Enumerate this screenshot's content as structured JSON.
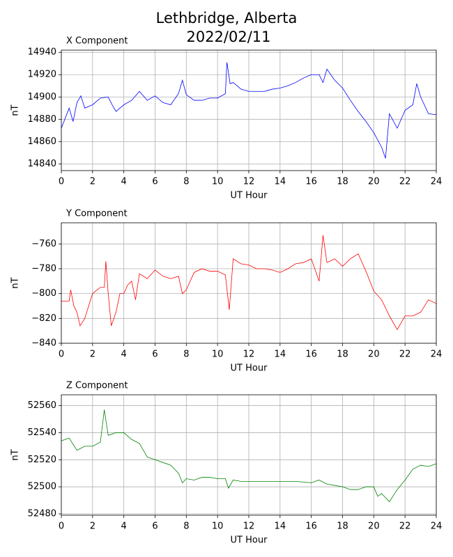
{
  "title": [
    "Lethbridge, Alberta",
    "2022/02/11"
  ],
  "chart_data": [
    {
      "type": "line",
      "title": "X Component",
      "xlabel": "UT Hour",
      "ylabel": "nT",
      "color": "#0000ff",
      "grid": true,
      "xlim": [
        0,
        24
      ],
      "xticks": [
        0,
        2,
        4,
        6,
        8,
        10,
        12,
        14,
        16,
        18,
        20,
        22,
        24
      ],
      "ylim": [
        14834,
        14942
      ],
      "yticks": [
        14840,
        14860,
        14880,
        14900,
        14920,
        14940
      ],
      "x": [
        0,
        0.5,
        0.75,
        1,
        1.25,
        1.5,
        2,
        2.5,
        3,
        3.25,
        3.5,
        4,
        4.5,
        5,
        5.5,
        6,
        6.5,
        7,
        7.5,
        7.75,
        8,
        8.5,
        9,
        9.5,
        10,
        10.5,
        10.6,
        10.8,
        11,
        11.5,
        12,
        12.5,
        13,
        13.5,
        14,
        14.5,
        15,
        15.5,
        16,
        16.5,
        16.75,
        17,
        17.5,
        18,
        18.5,
        19,
        19.5,
        20,
        20.5,
        20.75,
        21,
        21.5,
        22,
        22.5,
        22.75,
        23,
        23.5,
        24
      ],
      "values": [
        14872,
        14890,
        14878,
        14895,
        14901,
        14890,
        14893,
        14899,
        14900,
        14893,
        14887,
        14893,
        14897,
        14905,
        14897,
        14901,
        14895,
        14893,
        14903,
        14915,
        14902,
        14897,
        14897,
        14899,
        14899,
        14903,
        14931,
        14912,
        14913,
        14907,
        14905,
        14905,
        14905,
        14907,
        14908,
        14910,
        14913,
        14917,
        14920,
        14920,
        14913,
        14925,
        14915,
        14908,
        14897,
        14887,
        14878,
        14868,
        14855,
        14845,
        14885,
        14872,
        14888,
        14893,
        14912,
        14900,
        14885,
        14884
      ]
    },
    {
      "type": "line",
      "title": "Y Component",
      "xlabel": "UT Hour",
      "ylabel": "nT",
      "color": "#ff0000",
      "grid": true,
      "xlim": [
        0,
        24
      ],
      "xticks": [
        0,
        2,
        4,
        6,
        8,
        10,
        12,
        14,
        16,
        18,
        20,
        22,
        24
      ],
      "ylim": [
        -840,
        -743
      ],
      "yticks": [
        {
          "value": -840,
          "label": "−840"
        },
        {
          "value": -820,
          "label": "−820"
        },
        {
          "value": -800,
          "label": "−800"
        },
        {
          "value": -780,
          "label": "−780"
        },
        {
          "value": -760,
          "label": "−760"
        }
      ],
      "x": [
        0,
        0.5,
        0.6,
        0.8,
        1,
        1.2,
        1.5,
        2,
        2.5,
        2.75,
        2.85,
        3,
        3.2,
        3.5,
        3.75,
        4,
        4.25,
        4.5,
        4.75,
        5,
        5.5,
        6,
        6.5,
        7,
        7.5,
        7.75,
        8,
        8.5,
        9,
        9.5,
        10,
        10.5,
        10.75,
        11,
        11.5,
        12,
        12.5,
        13,
        13.5,
        14,
        14.5,
        15,
        15.5,
        16,
        16.5,
        16.75,
        17,
        17.5,
        18,
        18.5,
        19,
        19.5,
        20,
        20.5,
        21,
        21.5,
        22,
        22.5,
        23,
        23.5,
        24
      ],
      "values": [
        -806,
        -806,
        -797,
        -810,
        -815,
        -826,
        -820,
        -800,
        -795,
        -795,
        -774,
        -800,
        -826,
        -815,
        -800,
        -800,
        -793,
        -790,
        -805,
        -784,
        -788,
        -781,
        -786,
        -788,
        -786,
        -800,
        -797,
        -783,
        -780,
        -782,
        -782,
        -785,
        -813,
        -772,
        -776,
        -777,
        -780,
        -780,
        -781,
        -783,
        -780,
        -776,
        -775,
        -772,
        -790,
        -753,
        -775,
        -772,
        -778,
        -772,
        -768,
        -782,
        -798,
        -805,
        -818,
        -829,
        -818,
        -818,
        -815,
        -805,
        -808
      ]
    },
    {
      "type": "line",
      "title": "Z Component",
      "xlabel": "UT Hour",
      "ylabel": "nT",
      "color": "#008000",
      "grid": true,
      "xlim": [
        0,
        24
      ],
      "xticks": [
        0,
        2,
        4,
        6,
        8,
        10,
        12,
        14,
        16,
        18,
        20,
        22,
        24
      ],
      "ylim": [
        52479,
        52568
      ],
      "yticks": [
        52480,
        52500,
        52520,
        52540,
        52560
      ],
      "x": [
        0,
        0.5,
        1,
        1.5,
        2,
        2.5,
        2.75,
        3,
        3.5,
        4,
        4.5,
        5,
        5.5,
        6,
        6.5,
        7,
        7.5,
        7.75,
        8,
        8.5,
        9,
        9.5,
        10,
        10.5,
        10.7,
        11,
        11.5,
        12,
        13,
        14,
        15,
        16,
        16.5,
        17,
        18,
        18.5,
        19,
        19.5,
        20,
        20.25,
        20.5,
        21,
        21.5,
        22,
        22.5,
        23,
        23.5,
        24
      ],
      "values": [
        52534,
        52536,
        52527,
        52530,
        52530,
        52533,
        52557,
        52538,
        52540,
        52540,
        52535,
        52532,
        52522,
        52520,
        52518,
        52516,
        52510,
        52503,
        52506,
        52505,
        52507,
        52507,
        52506,
        52506,
        52499,
        52505,
        52504,
        52504,
        52504,
        52504,
        52504,
        52503,
        52505,
        52502,
        52500,
        52498,
        52498,
        52500,
        52500,
        52493,
        52495,
        52489,
        52498,
        52505,
        52513,
        52516,
        52515,
        52517
      ]
    }
  ]
}
